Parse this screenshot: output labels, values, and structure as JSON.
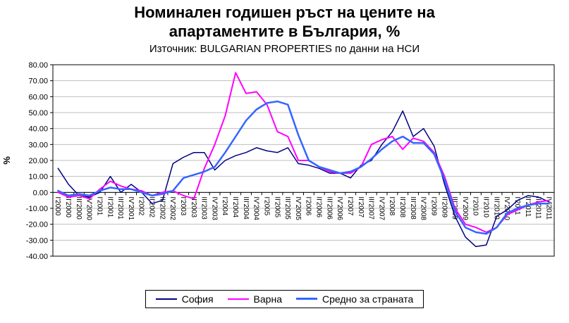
{
  "header": {
    "title_lines": [
      "Номинален годишен ръст на цените на",
      "апартаментите в България, %"
    ],
    "subtitle": "Източник: BULGARIAN PROPERTIES по данни на НСИ"
  },
  "chart_data": {
    "type": "line",
    "title": "Номинален годишен ръст на цените на апартаментите в България, %",
    "subtitle": "Източник: BULGARIAN PROPERTIES по данни на НСИ",
    "xlabel": "",
    "ylabel": "%",
    "ylim": [
      -40,
      80
    ],
    "yticks": [
      80,
      70,
      60,
      50,
      40,
      30,
      20,
      10,
      0,
      -10,
      -20,
      -30,
      -40
    ],
    "ytick_labels": [
      "80.00",
      "70.00",
      "60.00",
      "50.00",
      "40.00",
      "30.00",
      "20.00",
      "10.00",
      "0.00",
      "-10.00",
      "-20.00",
      "-30.00",
      "-40.00"
    ],
    "grid": true,
    "gridline_color": "#BFBFBF",
    "legend_position": "bottom",
    "x": [
      "I'2000",
      "II'2000",
      "III'2000",
      "IV'2000",
      "I'2001",
      "II'2001",
      "III'2001",
      "IV'2001",
      "I'2002",
      "II'2002",
      "III'2002",
      "IV'2002",
      "I'2003",
      "II'2003",
      "III'2003",
      "IV'2003",
      "I'2004",
      "II'2004",
      "III'2004",
      "IV'2004",
      "I'2005",
      "II'2005",
      "III'2005",
      "IV'2005",
      "I'2006",
      "II'2006",
      "III'2006",
      "IV'2006",
      "I'2007",
      "II'2007",
      "III'2007",
      "IV'2007",
      "I'2008",
      "II'2008",
      "III'2008",
      "IV'2008",
      "I'2009",
      "II'2009",
      "III'2009",
      "IV'2009",
      "I'2010",
      "II'2010",
      "III'2010",
      "IV'2010",
      "I'2011",
      "II'2011",
      "III'2011",
      "IV'2011"
    ],
    "series": [
      {
        "key": "sofia",
        "name": "София",
        "color": "#000080",
        "width": 1.5,
        "values": [
          15,
          5,
          -2,
          -3,
          0,
          10,
          0,
          5,
          0,
          -7,
          -5,
          18,
          22,
          25,
          25,
          14,
          20,
          23,
          25,
          28,
          26,
          25,
          28,
          18,
          17,
          15,
          12,
          12,
          9,
          17,
          20,
          30,
          38,
          51,
          35,
          40,
          29,
          5,
          -15,
          -28,
          -34,
          -33,
          -15,
          -11,
          -5,
          -2,
          -3,
          -6
        ]
      },
      {
        "key": "varna",
        "name": "Варна",
        "color": "#FF00FF",
        "width": 2,
        "values": [
          0,
          -3,
          -2,
          -4,
          2,
          7,
          4,
          2,
          1,
          -2,
          0,
          1,
          -2,
          -4,
          15,
          30,
          48,
          75,
          62,
          63,
          55,
          38,
          35,
          20,
          20,
          16,
          13,
          12,
          12,
          16,
          30,
          33,
          35,
          27,
          34,
          32,
          25,
          10,
          -10,
          -20,
          -22,
          -25,
          -22,
          -14,
          -11,
          -8,
          -6,
          -5
        ]
      },
      {
        "key": "average",
        "name": "Средно за страната",
        "color": "#3366FF",
        "width": 2.5,
        "values": [
          1,
          -2,
          -1,
          -2,
          1,
          3,
          2,
          2,
          0,
          -2,
          -1,
          1,
          9,
          11,
          13,
          16,
          25,
          35,
          45,
          52,
          56,
          57,
          55,
          36,
          20,
          16,
          14,
          12,
          13,
          16,
          21,
          27,
          32,
          35,
          31,
          31,
          24,
          8,
          -12,
          -22,
          -25,
          -26,
          -22,
          -13,
          -10,
          -8,
          -7,
          -7
        ]
      }
    ]
  }
}
